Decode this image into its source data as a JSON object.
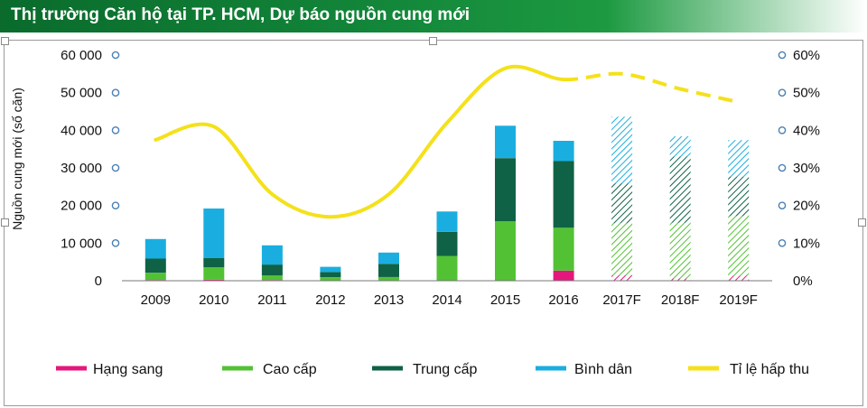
{
  "header": {
    "title": "Thị trường Căn hộ tại TP. HCM, Dự báo nguồn cung mới"
  },
  "colors": {
    "header_green": "#13873a",
    "hang_sang": "#e4177d",
    "cao_cap": "#52c234",
    "trung_cap": "#0f6245",
    "binh_dan": "#1aaee0",
    "ti_le": "#f4e11b"
  },
  "chart_data": {
    "type": "bar",
    "subtype": "stacked-bar-with-line",
    "title": "Thị trường Căn hộ tại TP. HCM, Dự báo nguồn cung mới",
    "ylabel": "Nguồn cung mới (số căn)",
    "categories": [
      "2009",
      "2010",
      "2011",
      "2012",
      "2013",
      "2014",
      "2015",
      "2016",
      "2017F",
      "2018F",
      "2019F"
    ],
    "forecast_from_index": 8,
    "ylim": [
      0,
      60000
    ],
    "yticks": [
      0,
      10000,
      20000,
      30000,
      40000,
      50000,
      60000
    ],
    "ytick_labels": [
      "0",
      "10 000",
      "20 000",
      "30 000",
      "40 000",
      "50 000",
      "60 000"
    ],
    "y2lim": [
      0,
      0.6
    ],
    "y2ticks": [
      0,
      0.1,
      0.2,
      0.3,
      0.4,
      0.5,
      0.6
    ],
    "y2tick_labels": [
      "0%",
      "10%",
      "20%",
      "30%",
      "40%",
      "50%",
      "60%"
    ],
    "series": [
      {
        "name": "Hạng sang",
        "kind": "bar",
        "values": [
          200,
          300,
          200,
          100,
          100,
          0,
          0,
          2700,
          1500,
          600,
          1400
        ]
      },
      {
        "name": "Cao cấp",
        "kind": "bar",
        "values": [
          1900,
          3300,
          1200,
          800,
          900,
          6600,
          15800,
          11400,
          13800,
          14800,
          15800
        ]
      },
      {
        "name": "Trung cấp",
        "kind": "bar",
        "values": [
          3800,
          2400,
          2900,
          1400,
          3500,
          6400,
          16800,
          17700,
          10600,
          17600,
          10500
        ]
      },
      {
        "name": "Bình dân",
        "kind": "bar",
        "values": [
          5200,
          13200,
          5100,
          1400,
          3000,
          5400,
          8600,
          5400,
          17700,
          5400,
          9700
        ]
      },
      {
        "name": "Tỉ lệ hấp thu",
        "kind": "line",
        "axis": "right",
        "values": [
          0.375,
          0.41,
          0.23,
          0.17,
          0.23,
          0.42,
          0.565,
          0.535,
          0.55,
          0.51,
          0.475
        ]
      }
    ],
    "grid": false,
    "legend_position": "bottom"
  }
}
